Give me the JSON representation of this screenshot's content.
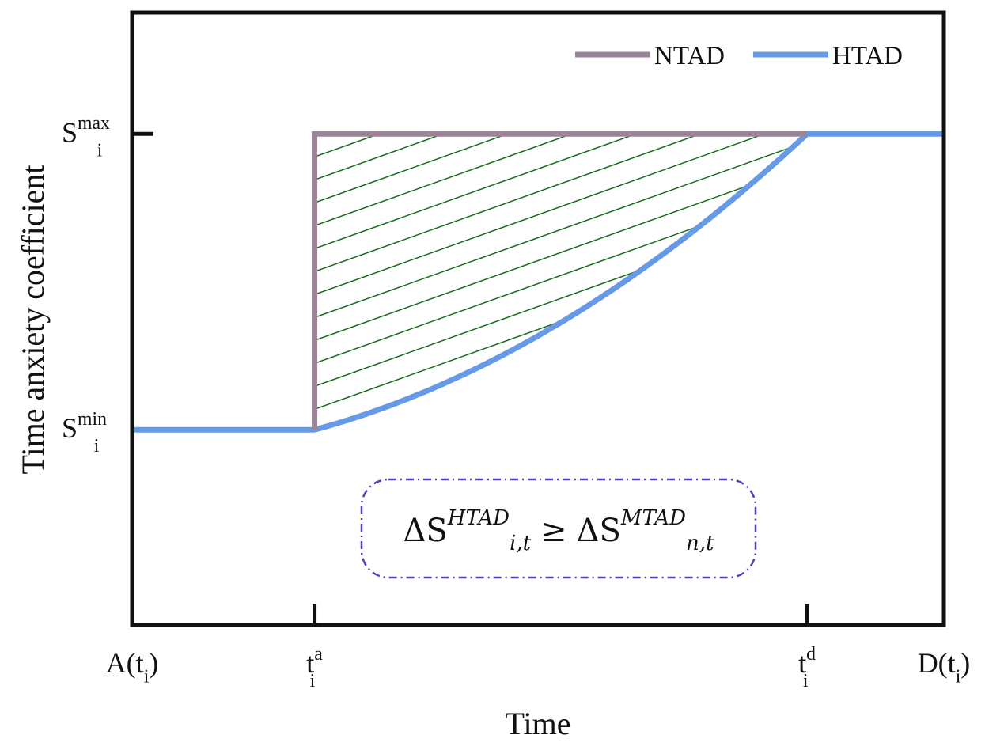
{
  "chart_data": {
    "type": "line",
    "ylabel": "Time anxiety coefficient",
    "xlabel": "Time",
    "x_ticks": [
      {
        "x": 0,
        "base": "A(t",
        "sub": "i",
        "sup": "",
        "tail": ")"
      },
      {
        "x": 1,
        "base": "t",
        "sub": "i",
        "sup": "a",
        "tail": ""
      },
      {
        "x": 3.7,
        "base": "t",
        "sub": "i",
        "sup": "d",
        "tail": ""
      },
      {
        "x": 4.45,
        "base": "D(t",
        "sub": "i",
        "sup": "",
        "tail": ")"
      }
    ],
    "y_ticks": [
      {
        "y": 1,
        "base": "S",
        "sub": "i",
        "sup": "max"
      },
      {
        "y": 0,
        "base": "S",
        "sub": "i",
        "sup": "min"
      }
    ],
    "xlim": [
      0,
      4.45
    ],
    "ylim": [
      -0.66,
      1.41
    ],
    "legend_position": "top-right",
    "series": [
      {
        "name": "NTAD",
        "color": "#9b8497",
        "points": [
          [
            1,
            0
          ],
          [
            1,
            1
          ],
          [
            3.7,
            1
          ]
        ]
      },
      {
        "name": "HTAD",
        "color": "#6699e6",
        "curve": "quadratic",
        "points": [
          [
            0,
            0
          ],
          [
            1,
            0
          ],
          [
            3.7,
            1
          ],
          [
            4.45,
            1
          ]
        ]
      }
    ],
    "hatch_region": {
      "between": [
        "NTAD",
        "HTAD"
      ],
      "x_range": [
        1,
        3.7
      ],
      "color": "#1a6b1a"
    },
    "annotation": {
      "delta": "ΔS",
      "left_sub": "i,t",
      "left_sup": "HTAD",
      "relation": "≥",
      "right_sub": "n,t",
      "right_sup": "MTAD",
      "box_color": "#4d44c4"
    }
  }
}
